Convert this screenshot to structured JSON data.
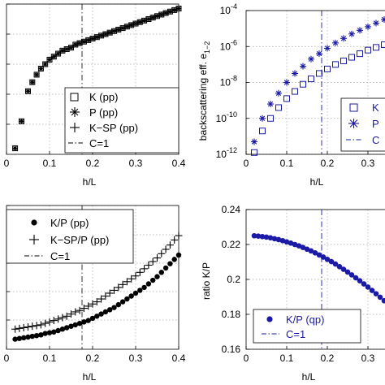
{
  "chart_data": [
    {
      "type": "scatter",
      "panel": "top-left",
      "xlabel": "h/L",
      "ylabel": "",
      "xlim": [
        0,
        0.4
      ],
      "x_ticks": [
        "0",
        "0.1",
        "0.2",
        "0.3",
        "0.4"
      ],
      "legend_placement": "bottom-right",
      "legend": [
        "K (pp)",
        "P (pp)",
        "K−SP (pp)",
        "C=1"
      ],
      "grid": true,
      "vline_x": 0.175,
      "x": [
        0.02,
        0.035,
        0.05,
        0.06,
        0.07,
        0.08,
        0.09,
        0.1,
        0.11,
        0.12,
        0.13,
        0.14,
        0.15,
        0.16,
        0.17,
        0.18,
        0.19,
        0.2,
        0.21,
        0.22,
        0.23,
        0.24,
        0.25,
        0.26,
        0.27,
        0.28,
        0.29,
        0.3,
        0.31,
        0.32,
        0.33,
        0.34,
        0.35,
        0.36,
        0.37,
        0.38,
        0.39,
        0.4
      ],
      "y_frac": [
        0.04,
        0.22,
        0.42,
        0.48,
        0.53,
        0.57,
        0.6,
        0.63,
        0.65,
        0.67,
        0.69,
        0.7,
        0.71,
        0.73,
        0.74,
        0.75,
        0.76,
        0.77,
        0.78,
        0.79,
        0.8,
        0.81,
        0.82,
        0.83,
        0.84,
        0.85,
        0.86,
        0.87,
        0.88,
        0.89,
        0.9,
        0.91,
        0.92,
        0.93,
        0.94,
        0.95,
        0.96,
        0.97
      ]
    },
    {
      "type": "scatter",
      "panel": "top-right",
      "xlabel": "h/L",
      "ylabel": "backscattering eff. e",
      "ylabel_sub": "1−2",
      "xlim": [
        0,
        0.35
      ],
      "ylim_log10": [
        -12,
        -4
      ],
      "x_ticks": [
        "0",
        "0.1",
        "0.2",
        "0.3"
      ],
      "y_tick_base": "10",
      "y_tick_exponents": [
        "-12",
        "-10",
        "-8",
        "-6",
        "-4"
      ],
      "legend_placement": "bottom-right",
      "legend": [
        "K",
        "P",
        "C"
      ],
      "grid": true,
      "vline_x": 0.175,
      "color": "#1a1aa6",
      "series": [
        {
          "name": "K",
          "x": [
            0.02,
            0.04,
            0.06,
            0.08,
            0.1,
            0.12,
            0.14,
            0.16,
            0.18,
            0.2,
            0.22,
            0.24,
            0.26,
            0.28,
            0.3,
            0.32,
            0.34
          ],
          "log10y": [
            -11.9,
            -10.7,
            -10.0,
            -9.4,
            -8.9,
            -8.5,
            -8.1,
            -7.8,
            -7.5,
            -7.25,
            -7.0,
            -6.8,
            -6.6,
            -6.4,
            -6.2,
            -6.05,
            -5.9
          ]
        },
        {
          "name": "P",
          "x": [
            0.02,
            0.04,
            0.06,
            0.08,
            0.1,
            0.12,
            0.14,
            0.16,
            0.18,
            0.2,
            0.22,
            0.24,
            0.26,
            0.28,
            0.3,
            0.32,
            0.34
          ],
          "log10y": [
            -11.3,
            -10.0,
            -9.2,
            -8.6,
            -8.0,
            -7.5,
            -7.1,
            -6.7,
            -6.4,
            -6.1,
            -5.8,
            -5.55,
            -5.3,
            -5.1,
            -4.9,
            -4.7,
            -4.5
          ]
        }
      ]
    },
    {
      "type": "scatter",
      "panel": "bottom-left",
      "xlabel": "h/L",
      "ylabel": "",
      "xlim": [
        0,
        0.4
      ],
      "x_ticks": [
        "0",
        "0.1",
        "0.2",
        "0.3",
        "0.4"
      ],
      "legend_placement": "top-left",
      "legend": [
        "K/P (pp)",
        "K−SP/P (pp)",
        "C=1"
      ],
      "grid": true,
      "vline_x": 0.175,
      "series": [
        {
          "name": "K/P (pp)",
          "x": [
            0.02,
            0.03,
            0.04,
            0.05,
            0.06,
            0.07,
            0.08,
            0.09,
            0.1,
            0.11,
            0.12,
            0.13,
            0.14,
            0.15,
            0.16,
            0.17,
            0.18,
            0.19,
            0.2,
            0.21,
            0.22,
            0.23,
            0.24,
            0.25,
            0.26,
            0.27,
            0.28,
            0.29,
            0.3,
            0.31,
            0.32,
            0.33,
            0.34,
            0.35,
            0.36,
            0.37,
            0.38,
            0.39,
            0.4
          ],
          "y_frac": [
            0.07,
            0.075,
            0.08,
            0.085,
            0.09,
            0.095,
            0.1,
            0.11,
            0.115,
            0.12,
            0.13,
            0.14,
            0.15,
            0.16,
            0.17,
            0.18,
            0.19,
            0.2,
            0.215,
            0.23,
            0.245,
            0.26,
            0.275,
            0.29,
            0.31,
            0.33,
            0.35,
            0.37,
            0.39,
            0.41,
            0.43,
            0.455,
            0.48,
            0.505,
            0.535,
            0.565,
            0.595,
            0.625,
            0.655
          ]
        },
        {
          "name": "K−SP/P (pp)",
          "x": [
            0.02,
            0.03,
            0.04,
            0.05,
            0.06,
            0.07,
            0.08,
            0.09,
            0.1,
            0.11,
            0.12,
            0.13,
            0.14,
            0.15,
            0.16,
            0.17,
            0.18,
            0.19,
            0.2,
            0.21,
            0.22,
            0.23,
            0.24,
            0.25,
            0.26,
            0.27,
            0.28,
            0.29,
            0.3,
            0.31,
            0.32,
            0.33,
            0.34,
            0.35,
            0.36,
            0.37,
            0.38,
            0.39,
            0.4
          ],
          "y_frac": [
            0.14,
            0.145,
            0.15,
            0.155,
            0.16,
            0.165,
            0.17,
            0.18,
            0.19,
            0.2,
            0.21,
            0.22,
            0.23,
            0.245,
            0.26,
            0.27,
            0.285,
            0.3,
            0.315,
            0.33,
            0.35,
            0.37,
            0.39,
            0.41,
            0.43,
            0.45,
            0.47,
            0.49,
            0.51,
            0.535,
            0.56,
            0.585,
            0.61,
            0.635,
            0.665,
            0.695,
            0.725,
            0.76,
            0.79
          ]
        }
      ]
    },
    {
      "type": "scatter",
      "panel": "bottom-right",
      "xlabel": "h/L",
      "ylabel": "ratio K/P",
      "xlim": [
        0,
        0.35
      ],
      "ylim": [
        0.16,
        0.24
      ],
      "x_ticks": [
        "0",
        "0.1",
        "0.2",
        "0.3"
      ],
      "y_ticks": [
        "0.16",
        "0.18",
        "0.2",
        "0.22",
        "0.24"
      ],
      "legend_placement": "bottom-left",
      "legend": [
        "K/P (qp)",
        "C=1"
      ],
      "grid": true,
      "vline_x": 0.175,
      "color": "#1a1aa6",
      "series": [
        {
          "name": "K/P (qp)",
          "x": [
            0.02,
            0.03,
            0.04,
            0.05,
            0.06,
            0.07,
            0.08,
            0.09,
            0.1,
            0.11,
            0.12,
            0.13,
            0.14,
            0.15,
            0.16,
            0.17,
            0.18,
            0.19,
            0.2,
            0.21,
            0.22,
            0.23,
            0.24,
            0.25,
            0.26,
            0.27,
            0.28,
            0.29,
            0.3,
            0.31,
            0.32,
            0.33,
            0.34
          ],
          "y": [
            0.225,
            0.2248,
            0.2245,
            0.2242,
            0.2238,
            0.2233,
            0.2228,
            0.2222,
            0.2215,
            0.2208,
            0.22,
            0.2192,
            0.2183,
            0.2173,
            0.2163,
            0.2152,
            0.214,
            0.2128,
            0.2115,
            0.2102,
            0.2088,
            0.2073,
            0.2058,
            0.2042,
            0.2026,
            0.2009,
            0.1992,
            0.1974,
            0.1956,
            0.1937,
            0.1918,
            0.1898,
            0.1878
          ]
        }
      ]
    }
  ]
}
